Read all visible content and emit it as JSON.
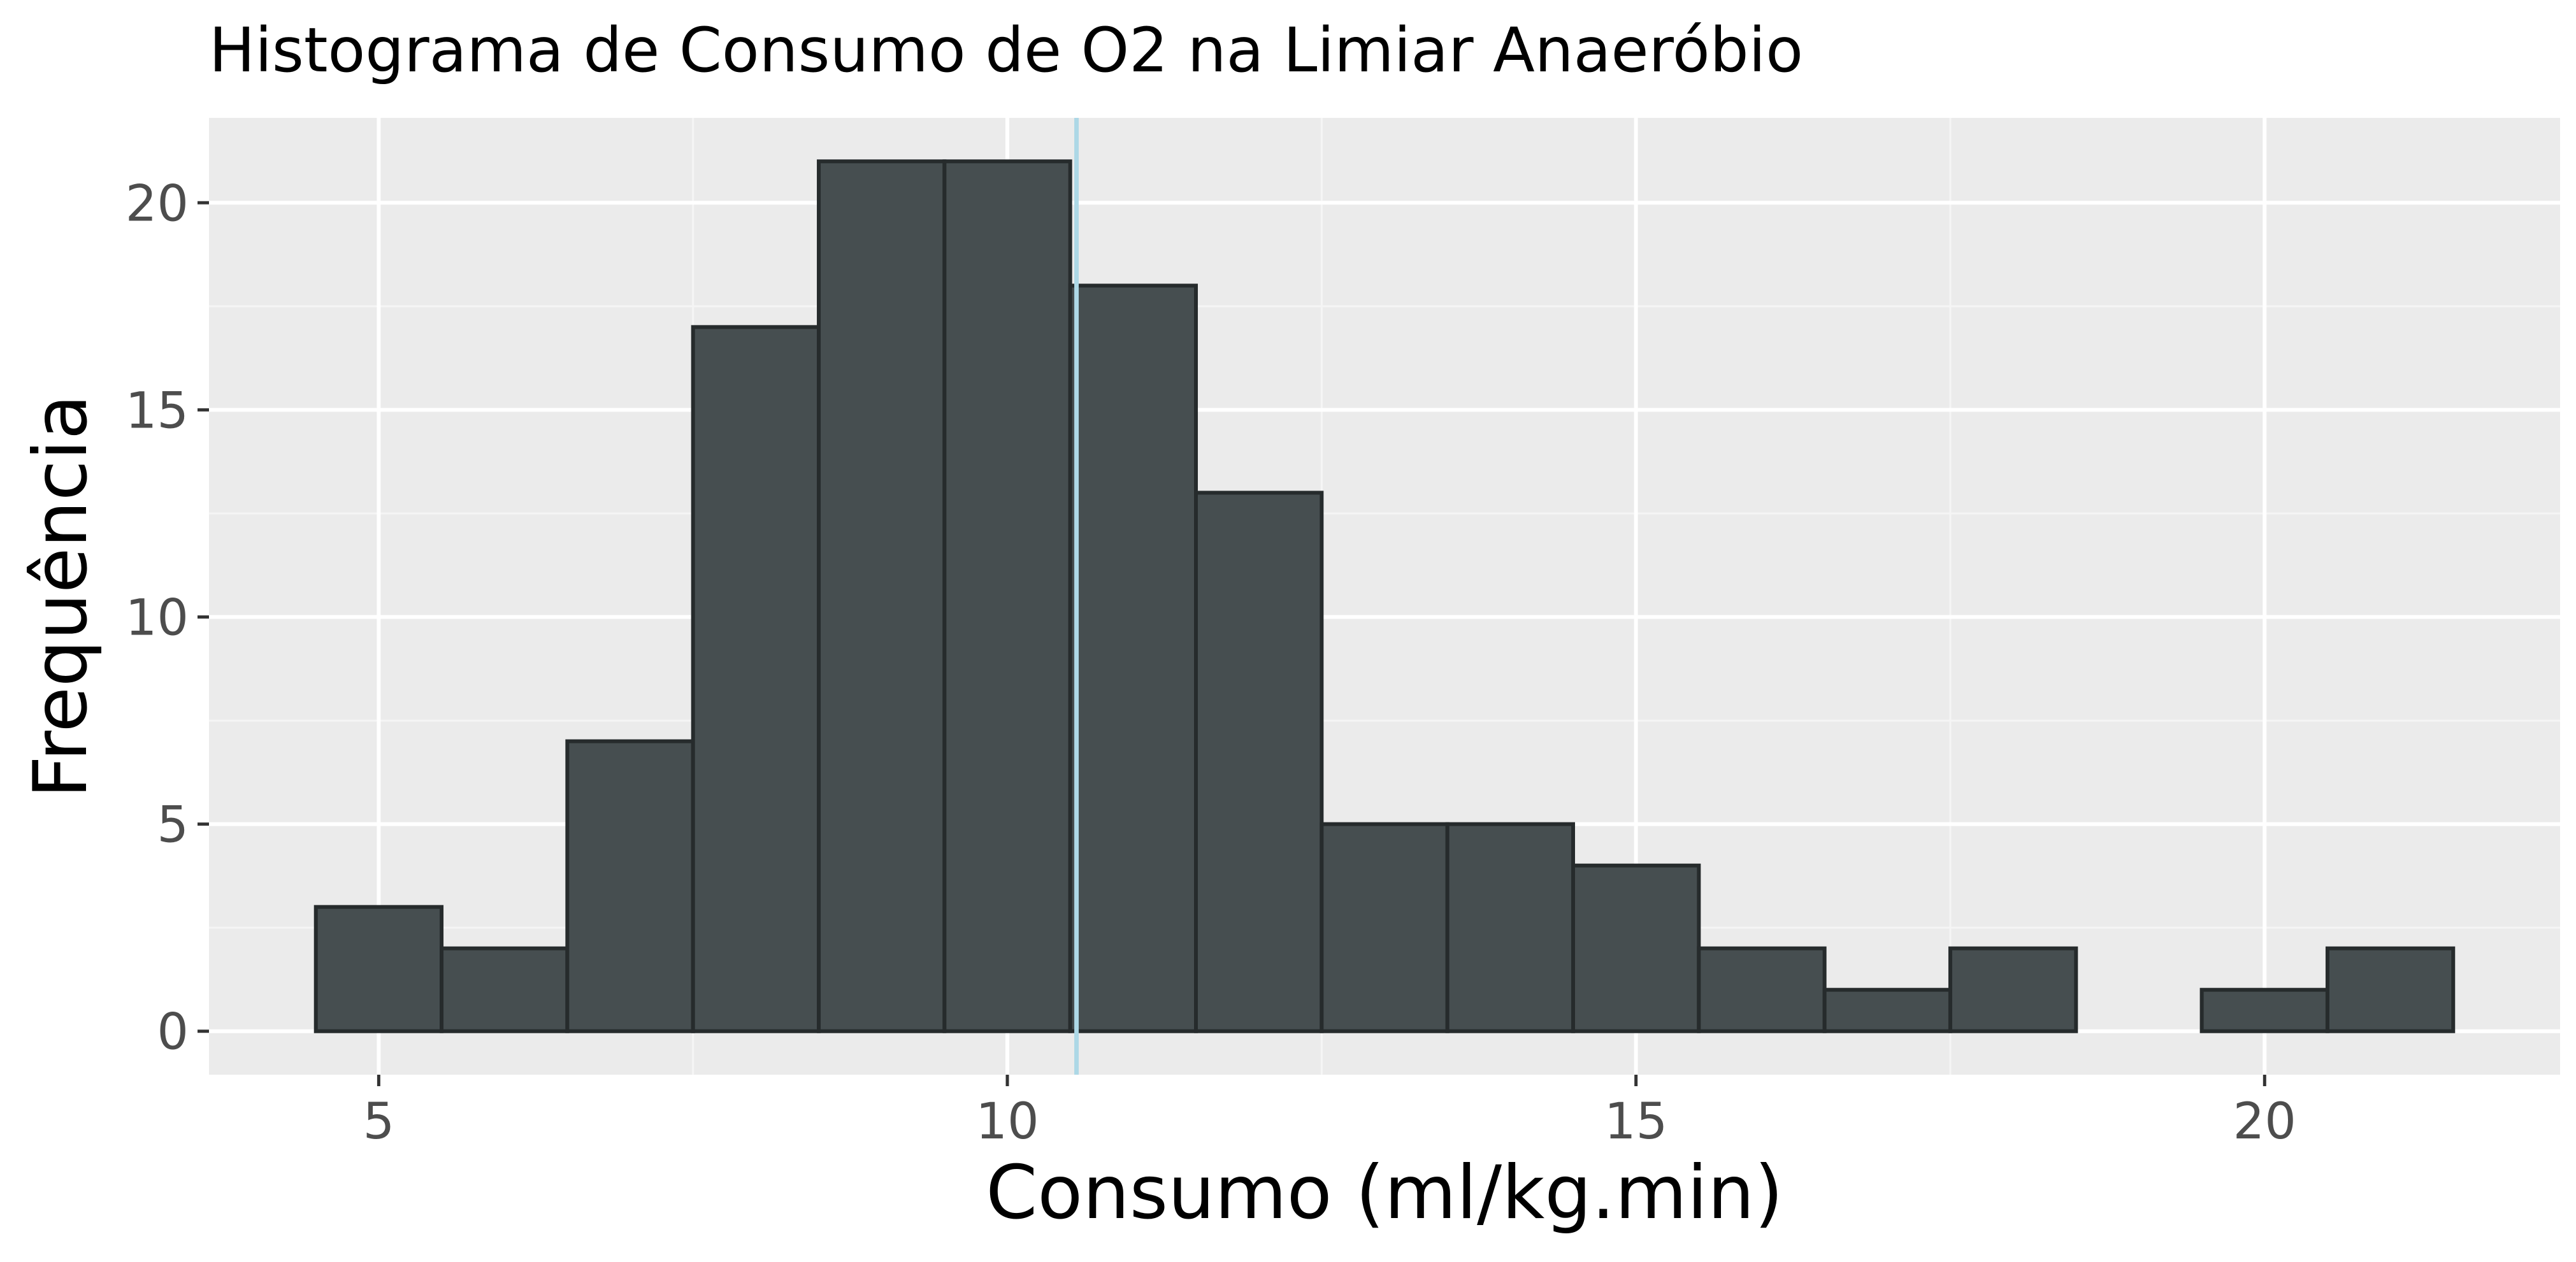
{
  "chart_data": {
    "type": "histogram",
    "title": "Histograma de Consumo de O2 na Limiar Anaeróbio",
    "xlabel": "Consumo (ml/kg.min)",
    "ylabel": "Frequência",
    "bins": [
      {
        "x_min": 4.5,
        "x_max": 5.5,
        "count": 3
      },
      {
        "x_min": 5.5,
        "x_max": 6.5,
        "count": 2
      },
      {
        "x_min": 6.5,
        "x_max": 7.5,
        "count": 7
      },
      {
        "x_min": 7.5,
        "x_max": 8.5,
        "count": 17
      },
      {
        "x_min": 8.5,
        "x_max": 9.5,
        "count": 21
      },
      {
        "x_min": 9.5,
        "x_max": 10.5,
        "count": 21
      },
      {
        "x_min": 10.5,
        "x_max": 11.5,
        "count": 18
      },
      {
        "x_min": 11.5,
        "x_max": 12.5,
        "count": 13
      },
      {
        "x_min": 12.5,
        "x_max": 13.5,
        "count": 5
      },
      {
        "x_min": 13.5,
        "x_max": 14.5,
        "count": 5
      },
      {
        "x_min": 14.5,
        "x_max": 15.5,
        "count": 4
      },
      {
        "x_min": 15.5,
        "x_max": 16.5,
        "count": 2
      },
      {
        "x_min": 16.5,
        "x_max": 17.5,
        "count": 1
      },
      {
        "x_min": 17.5,
        "x_max": 18.5,
        "count": 2
      },
      {
        "x_min": 18.5,
        "x_max": 19.5,
        "count": 0
      },
      {
        "x_min": 19.5,
        "x_max": 20.5,
        "count": 1
      },
      {
        "x_min": 20.5,
        "x_max": 21.5,
        "count": 2
      }
    ],
    "reference_line": {
      "x": 10.55,
      "color": "#add8e6"
    },
    "x_ticks": [
      5,
      10,
      15,
      20
    ],
    "y_ticks": [
      0,
      5,
      10,
      15,
      20
    ],
    "xlim": [
      3.65,
      22.35
    ],
    "ylim": [
      -1.05,
      22.05
    ],
    "grid": true,
    "colors": {
      "panel_background": "#ebebeb",
      "grid_major": "#ffffff",
      "grid_minor": "#f5f5f5",
      "bar_fill": "#464e50",
      "bar_outline": "#262b2c",
      "tick_color": "#333333"
    }
  }
}
